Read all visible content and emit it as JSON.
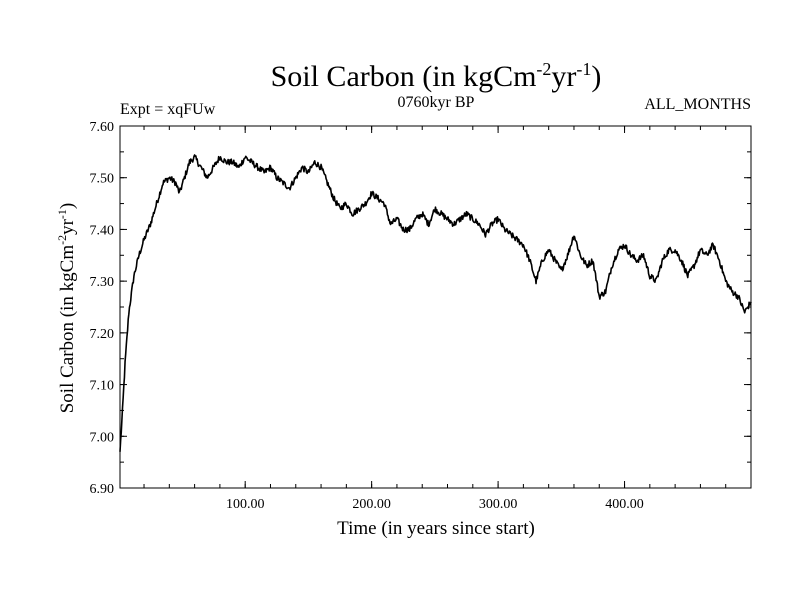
{
  "chart_data": {
    "type": "line",
    "title": {
      "main": "Soil Carbon (in kgCm",
      "sup1": "-2",
      "mid": "yr",
      "sup2": "-1",
      "end": ")"
    },
    "header": {
      "left": "Expt = xqFUw",
      "center": "0760kyr BP",
      "right": "ALL_MONTHS"
    },
    "xlabel": "Time (in years since start)",
    "ylabel": {
      "main": "Soil Carbon (in kgCm",
      "sup1": "-2",
      "mid": "yr",
      "sup2": "-1",
      "end": ")"
    },
    "xlim": [
      1,
      500
    ],
    "ylim": [
      6.9,
      7.6
    ],
    "x_ticks": [
      {
        "value": 100,
        "label": "100.00"
      },
      {
        "value": 200,
        "label": "200.00"
      },
      {
        "value": 300,
        "label": "300.00"
      },
      {
        "value": 400,
        "label": "400.00"
      }
    ],
    "y_ticks": [
      {
        "value": 6.9,
        "label": "6.90"
      },
      {
        "value": 7.0,
        "label": "7.00"
      },
      {
        "value": 7.1,
        "label": "7.10"
      },
      {
        "value": 7.2,
        "label": "7.20"
      },
      {
        "value": 7.3,
        "label": "7.30"
      },
      {
        "value": 7.4,
        "label": "7.40"
      },
      {
        "value": 7.5,
        "label": "7.50"
      },
      {
        "value": 7.6,
        "label": "7.60"
      }
    ],
    "series": [
      {
        "name": "Soil Carbon",
        "x": [
          1,
          3,
          5,
          8,
          12,
          16,
          20,
          25,
          30,
          35,
          40,
          45,
          48,
          52,
          56,
          60,
          65,
          70,
          75,
          80,
          85,
          90,
          95,
          100,
          105,
          110,
          115,
          120,
          125,
          130,
          135,
          140,
          145,
          150,
          155,
          160,
          165,
          170,
          175,
          180,
          185,
          190,
          195,
          200,
          205,
          210,
          215,
          220,
          225,
          230,
          235,
          240,
          245,
          250,
          255,
          260,
          265,
          270,
          275,
          280,
          285,
          290,
          295,
          300,
          305,
          310,
          315,
          320,
          325,
          330,
          335,
          340,
          345,
          350,
          355,
          360,
          365,
          370,
          375,
          380,
          385,
          390,
          395,
          400,
          405,
          410,
          415,
          420,
          425,
          430,
          435,
          440,
          445,
          450,
          455,
          460,
          465,
          470,
          475,
          480,
          485,
          490,
          495,
          500
        ],
        "values": [
          6.97,
          7.05,
          7.14,
          7.24,
          7.31,
          7.35,
          7.38,
          7.41,
          7.45,
          7.49,
          7.5,
          7.49,
          7.47,
          7.5,
          7.53,
          7.54,
          7.52,
          7.5,
          7.52,
          7.54,
          7.53,
          7.53,
          7.52,
          7.54,
          7.53,
          7.52,
          7.51,
          7.52,
          7.5,
          7.49,
          7.48,
          7.5,
          7.52,
          7.51,
          7.53,
          7.52,
          7.49,
          7.46,
          7.44,
          7.45,
          7.43,
          7.44,
          7.45,
          7.47,
          7.46,
          7.45,
          7.41,
          7.42,
          7.4,
          7.4,
          7.42,
          7.43,
          7.41,
          7.44,
          7.43,
          7.42,
          7.41,
          7.42,
          7.43,
          7.42,
          7.41,
          7.39,
          7.41,
          7.42,
          7.4,
          7.39,
          7.38,
          7.37,
          7.34,
          7.3,
          7.34,
          7.36,
          7.34,
          7.32,
          7.35,
          7.39,
          7.35,
          7.33,
          7.34,
          7.27,
          7.28,
          7.33,
          7.36,
          7.37,
          7.35,
          7.34,
          7.35,
          7.31,
          7.3,
          7.34,
          7.36,
          7.36,
          7.34,
          7.31,
          7.33,
          7.36,
          7.35,
          7.37,
          7.34,
          7.3,
          7.28,
          7.27,
          7.24,
          7.26
        ]
      }
    ]
  }
}
